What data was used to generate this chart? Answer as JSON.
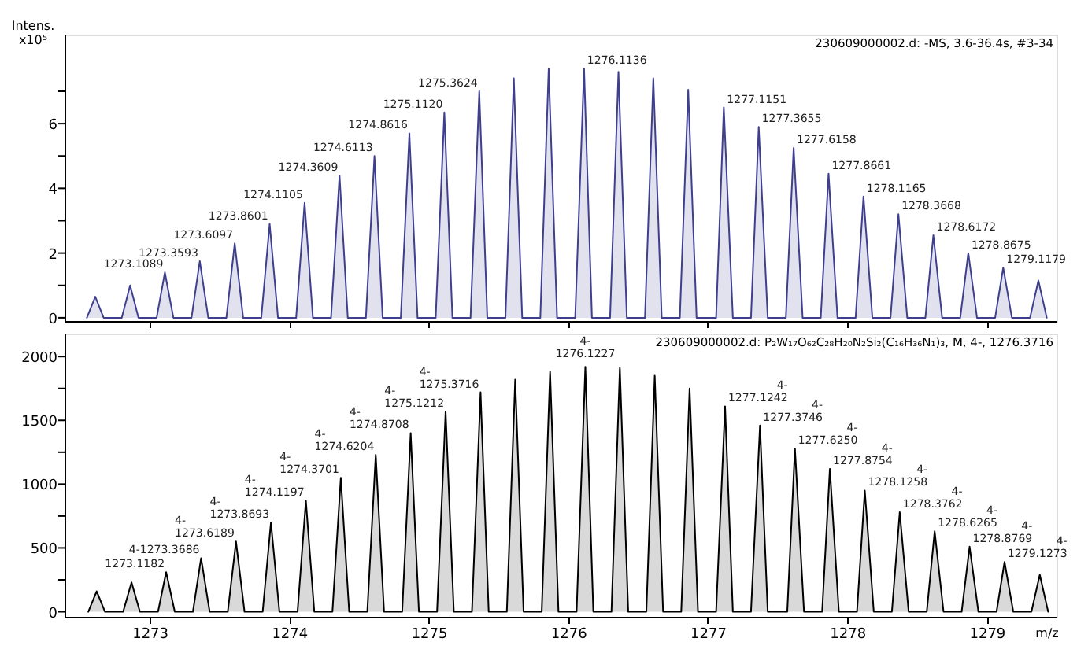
{
  "chart_data": [
    {
      "type": "area",
      "ylabel": "Intens.\nx10⁵",
      "xlim": [
        1272.39,
        1279.5
      ],
      "ylim": [
        -0.1,
        8.75
      ],
      "xticks": [
        1273,
        1274,
        1275,
        1276,
        1277,
        1278,
        1279
      ],
      "yticks": [
        0,
        {
          "value": 1,
          "label": null
        },
        2,
        {
          "value": 3,
          "label": null
        },
        4,
        {
          "value": 5,
          "label": null
        },
        6,
        {
          "value": 7,
          "label": null
        }
      ],
      "tick_labels": "y",
      "grid": false,
      "marker": "none",
      "line_style": "solid",
      "series": [
        {
          "color": "#3f3f8f",
          "x": [
            1272.55,
            1272.61,
            1272.67,
            1272.8,
            1272.86,
            1272.92,
            1273.05,
            1273.1089,
            1273.17,
            1273.3,
            1273.3593,
            1273.42,
            1273.55,
            1273.6097,
            1273.67,
            1273.8,
            1273.8601,
            1273.92,
            1274.05,
            1274.1105,
            1274.17,
            1274.3,
            1274.3609,
            1274.42,
            1274.55,
            1274.6113,
            1274.67,
            1274.8,
            1274.8616,
            1274.92,
            1275.05,
            1275.112,
            1275.17,
            1275.3,
            1275.3624,
            1275.42,
            1275.55,
            1275.61,
            1275.67,
            1275.8,
            1275.86,
            1275.92,
            1276.05,
            1276.1136,
            1276.17,
            1276.3,
            1276.36,
            1276.42,
            1276.55,
            1276.61,
            1276.67,
            1276.8,
            1276.86,
            1276.92,
            1277.06,
            1277.1151,
            1277.18,
            1277.31,
            1277.3655,
            1277.43,
            1277.56,
            1277.6158,
            1277.68,
            1277.81,
            1277.8661,
            1277.93,
            1278.06,
            1278.1165,
            1278.18,
            1278.31,
            1278.3668,
            1278.43,
            1278.56,
            1278.6172,
            1278.68,
            1278.81,
            1278.8675,
            1278.93,
            1279.06,
            1279.1179,
            1279.18,
            1279.31,
            1279.37,
            1279.43
          ],
          "values": [
            0,
            0.65,
            0,
            0,
            1.0,
            0,
            0,
            1.4,
            0,
            0,
            1.75,
            0,
            0,
            2.3,
            0,
            0,
            2.9,
            0,
            0,
            3.55,
            0,
            0,
            4.4,
            0,
            0,
            5.0,
            0,
            0,
            5.7,
            0,
            0,
            6.35,
            0,
            0,
            7.0,
            0,
            0,
            7.4,
            0,
            0,
            7.7,
            0,
            0,
            7.7,
            0,
            0,
            7.6,
            0,
            0,
            7.4,
            0,
            0,
            7.05,
            0,
            0,
            6.5,
            0,
            0,
            5.9,
            0,
            0,
            5.25,
            0,
            0,
            4.45,
            0,
            0,
            3.75,
            0,
            0,
            3.2,
            0,
            0,
            2.55,
            0,
            0,
            2.0,
            0,
            0,
            1.55,
            0,
            0,
            1.15,
            0
          ]
        }
      ],
      "annotations": [
        "230609000002.d: -MS, 3.6-36.4s, #3-34",
        {
          "text": "1273.1089",
          "x": 1273.1089,
          "y": 1.4
        },
        {
          "text": "1273.3593",
          "x": 1273.3593,
          "y": 1.75
        },
        {
          "text": "1273.6097",
          "x": 1273.6097,
          "y": 2.3
        },
        {
          "text": "1273.8601",
          "x": 1273.8601,
          "y": 2.9
        },
        {
          "text": "1274.1105",
          "x": 1274.1105,
          "y": 3.55
        },
        {
          "text": "1274.3609",
          "x": 1274.3609,
          "y": 4.4
        },
        {
          "text": "1274.6113",
          "x": 1274.6113,
          "y": 5.0
        },
        {
          "text": "1274.8616",
          "x": 1274.8616,
          "y": 5.7
        },
        {
          "text": "1275.1120",
          "x": 1275.112,
          "y": 6.35
        },
        {
          "text": "1275.3624",
          "x": 1275.3624,
          "y": 7.0
        },
        {
          "text": "1276.1136",
          "x": 1276.1136,
          "y": 7.7
        },
        {
          "text": "1277.1151",
          "x": 1277.1151,
          "y": 6.5
        },
        {
          "text": "1277.3655",
          "x": 1277.3655,
          "y": 5.9
        },
        {
          "text": "1277.6158",
          "x": 1277.6158,
          "y": 5.25
        },
        {
          "text": "1277.8661",
          "x": 1277.8661,
          "y": 4.45
        },
        {
          "text": "1278.1165",
          "x": 1278.1165,
          "y": 3.75
        },
        {
          "text": "1278.3668",
          "x": 1278.3668,
          "y": 3.2
        },
        {
          "text": "1278.6172",
          "x": 1278.6172,
          "y": 2.55
        },
        {
          "text": "1278.8675",
          "x": 1278.8675,
          "y": 2.0
        },
        {
          "text": "1279.1179",
          "x": 1279.1179,
          "y": 1.55
        }
      ]
    },
    {
      "type": "area",
      "xlabel": "m/z",
      "xlim": [
        1272.39,
        1279.5
      ],
      "ylim": [
        -40,
        2180
      ],
      "xticks": [
        1273,
        1274,
        1275,
        1276,
        1277,
        1278,
        1279
      ],
      "yticks": [
        0,
        {
          "value": 250,
          "label": null
        },
        500,
        {
          "value": 750,
          "label": null
        },
        1000,
        {
          "value": 1250,
          "label": null
        },
        1500,
        {
          "value": 1750,
          "label": null
        },
        2000
      ],
      "grid": false,
      "marker": "none",
      "line_style": "solid",
      "series": [
        {
          "color": "#000000",
          "x": [
            1272.56,
            1272.62,
            1272.68,
            1272.81,
            1272.87,
            1272.93,
            1273.06,
            1273.1182,
            1273.18,
            1273.31,
            1273.3686,
            1273.43,
            1273.56,
            1273.6189,
            1273.68,
            1273.81,
            1273.8693,
            1273.93,
            1274.06,
            1274.1197,
            1274.18,
            1274.31,
            1274.3701,
            1274.43,
            1274.56,
            1274.6204,
            1274.68,
            1274.81,
            1274.8708,
            1274.93,
            1275.06,
            1275.1212,
            1275.18,
            1275.31,
            1275.3716,
            1275.43,
            1275.56,
            1275.62,
            1275.68,
            1275.81,
            1275.87,
            1275.93,
            1276.06,
            1276.1227,
            1276.18,
            1276.31,
            1276.37,
            1276.43,
            1276.56,
            1276.62,
            1276.68,
            1276.81,
            1276.87,
            1276.93,
            1277.06,
            1277.1242,
            1277.18,
            1277.31,
            1277.3746,
            1277.43,
            1277.57,
            1277.625,
            1277.69,
            1277.82,
            1277.8754,
            1277.94,
            1278.07,
            1278.1258,
            1278.19,
            1278.32,
            1278.3762,
            1278.44,
            1278.57,
            1278.6265,
            1278.69,
            1278.82,
            1278.8769,
            1278.94,
            1279.07,
            1279.1273,
            1279.19,
            1279.32,
            1279.38,
            1279.44
          ],
          "values": [
            0,
            160,
            0,
            0,
            230,
            0,
            0,
            310,
            0,
            0,
            420,
            0,
            0,
            550,
            0,
            0,
            700,
            0,
            0,
            870,
            0,
            0,
            1050,
            0,
            0,
            1230,
            0,
            0,
            1400,
            0,
            0,
            1570,
            0,
            0,
            1720,
            0,
            0,
            1820,
            0,
            0,
            1880,
            0,
            0,
            1920,
            0,
            0,
            1910,
            0,
            0,
            1850,
            0,
            0,
            1750,
            0,
            0,
            1610,
            0,
            0,
            1460,
            0,
            0,
            1280,
            0,
            0,
            1120,
            0,
            0,
            950,
            0,
            0,
            780,
            0,
            0,
            630,
            0,
            0,
            510,
            0,
            0,
            390,
            0,
            0,
            290,
            0
          ]
        }
      ],
      "annotations": [
        "230609000002.d: P₂W₁₇O₆₂C₂₈H₂₀N₂Si₂(C₁₆H₃₆N₁)₃, M, 4-, 1276.3716",
        {
          "text": "1273.1182",
          "x": 1273.1182,
          "y": 310
        },
        {
          "text": "4-1273.3686",
          "x": 1273.3686,
          "y": 420
        },
        {
          "text": "4-\n1273.6189",
          "x": 1273.6189,
          "y": 550
        },
        {
          "text": "4-\n1273.8693",
          "x": 1273.8693,
          "y": 700
        },
        {
          "text": "4-\n1274.1197",
          "x": 1274.1197,
          "y": 870
        },
        {
          "text": "4-\n1274.3701",
          "x": 1274.3701,
          "y": 1050
        },
        {
          "text": "4-\n1274.6204",
          "x": 1274.6204,
          "y": 1230
        },
        {
          "text": "4-\n1274.8708",
          "x": 1274.8708,
          "y": 1400
        },
        {
          "text": "4-\n1275.1212",
          "x": 1275.1212,
          "y": 1570
        },
        {
          "text": "4-\n1275.3716",
          "x": 1275.3716,
          "y": 1720
        },
        {
          "text": "4-\n1276.1227",
          "x": 1276.1227,
          "y": 1920
        },
        {
          "text": "4-\n1277.1242",
          "x": 1277.1242,
          "y": 1610
        },
        {
          "text": "4-\n1277.3746",
          "x": 1277.3746,
          "y": 1460
        },
        {
          "text": "4-\n1277.6250",
          "x": 1277.625,
          "y": 1280
        },
        {
          "text": "4-\n1277.8754",
          "x": 1277.8754,
          "y": 1120
        },
        {
          "text": "4-\n1278.1258",
          "x": 1278.1258,
          "y": 950
        },
        {
          "text": "4-\n1278.3762",
          "x": 1278.3762,
          "y": 780
        },
        {
          "text": "4-\n1278.6265",
          "x": 1278.6265,
          "y": 630
        },
        {
          "text": "4-\n1278.8769",
          "x": 1278.8769,
          "y": 510
        },
        {
          "text": "4-\n1279.1273",
          "x": 1279.1273,
          "y": 390
        }
      ]
    }
  ]
}
